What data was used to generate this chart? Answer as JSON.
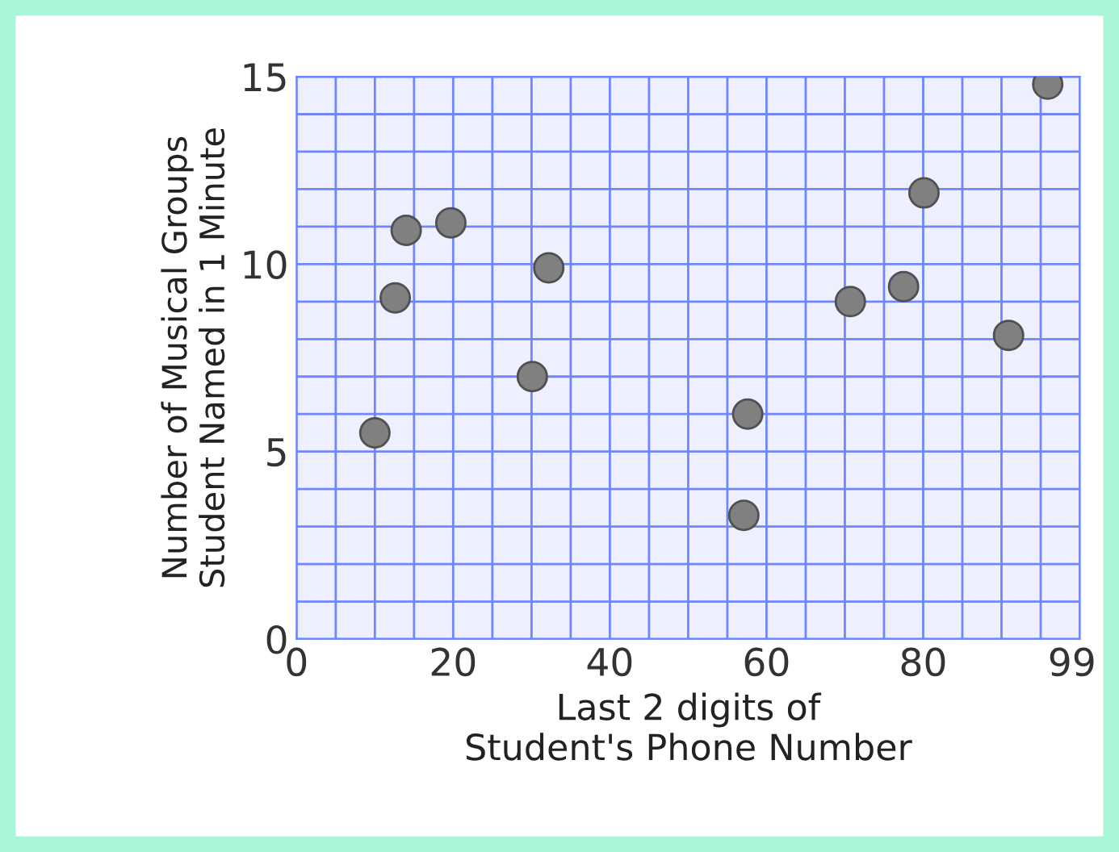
{
  "chart_data": {
    "type": "scatter",
    "xlabel": "Last 2 digits of\nStudent's Phone Number",
    "ylabel": "Number of Musical Groups\nStudent Named in 1 Minute",
    "x": [
      10.0,
      12.6,
      14.0,
      19.7,
      30.1,
      32.2,
      57.1,
      57.6,
      70.7,
      77.5,
      80.1,
      90.9,
      95.9
    ],
    "series": [
      {
        "color": "#808080",
        "values": [
          5.5,
          9.1,
          10.9,
          11.1,
          7.0,
          9.9,
          3.3,
          6.0,
          9.0,
          9.4,
          11.9,
          8.1,
          14.8
        ]
      }
    ],
    "xlim": [
      0,
      100
    ],
    "xticks": [
      0,
      20,
      40,
      60,
      80,
      99
    ],
    "ylim": [
      0,
      15
    ],
    "yticks": [
      0,
      5,
      10,
      15
    ],
    "grid": true,
    "marker": "circle"
  }
}
